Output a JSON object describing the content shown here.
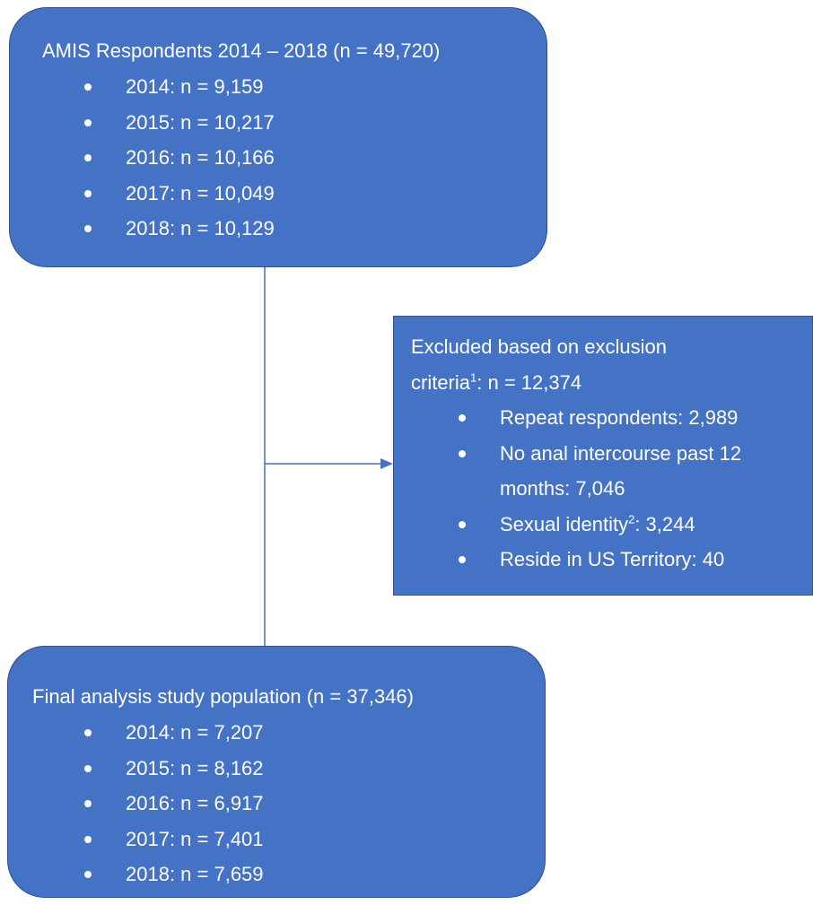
{
  "top_box": {
    "title": "AMIS Respondents 2014 – 2018 (n = 49,720)",
    "items": [
      "2014: n = 9,159",
      "2015: n = 10,217",
      "2016: n = 10,166",
      "2017: n = 10,049",
      "2018: n = 10,129"
    ]
  },
  "excluded_box": {
    "title": {
      "text": "Excluded based on exclusion criteria",
      "sup": "1",
      "rest": ": n = 12,374"
    },
    "items": [
      {
        "text": "Repeat respondents: 2,989"
      },
      {
        "text": "No anal intercourse past 12 months: 7,046"
      },
      {
        "text": "Sexual identity",
        "sup": "2",
        "rest": ": 3,244"
      },
      {
        "text": "Reside in US Territory: 40"
      }
    ]
  },
  "final_box": {
    "title": "Final analysis study population (n = 37,346)",
    "items": [
      "2014: n = 7,207",
      "2015: n = 8,162",
      "2016: n = 6,917",
      "2017: n = 7,401",
      "2018: n = 7,659"
    ]
  }
}
